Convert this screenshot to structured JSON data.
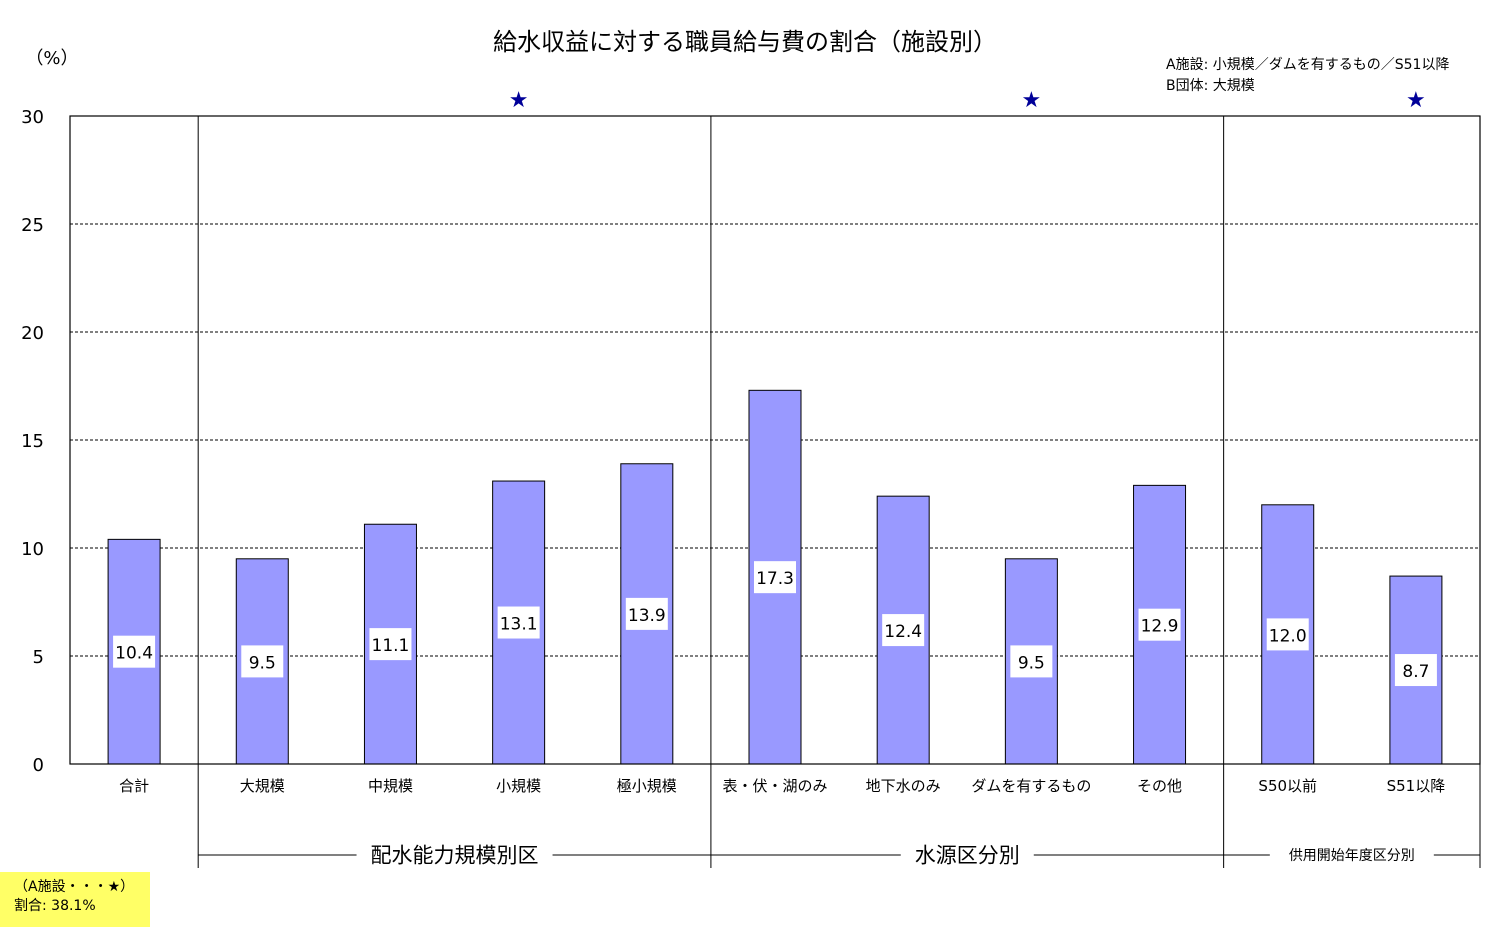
{
  "chart_data": {
    "type": "bar",
    "title": "給水収益に対する職員給与費の割合（施設別）",
    "ylabel": "（%）",
    "ylim": [
      0,
      30
    ],
    "yticks": [
      0,
      5,
      10,
      15,
      20,
      25,
      30
    ],
    "grid": true,
    "categories": [
      "合計",
      "大規模",
      "中規模",
      "小規模",
      "極小規模",
      "表・伏・湖のみ",
      "地下水のみ",
      "ダムを有するもの",
      "その他",
      "S50以前",
      "S51以降"
    ],
    "values": [
      10.4,
      9.5,
      11.1,
      13.1,
      13.9,
      17.3,
      12.4,
      9.5,
      12.9,
      12.0,
      8.7
    ],
    "value_labels": [
      "10.4",
      "9.5",
      "11.1",
      "13.1",
      "13.9",
      "17.3",
      "12.4",
      "9.5",
      "12.9",
      "12.0",
      "8.7"
    ],
    "bar_color": "#9999ff",
    "star_color": "#000099",
    "starred_categories": [
      "小規模",
      "ダムを有するもの",
      "S51以降"
    ],
    "groups": [
      {
        "label": "配水能力規模別区",
        "categories": [
          "大規模",
          "中規模",
          "小規模",
          "極小規模"
        ]
      },
      {
        "label": "水源区分別",
        "categories": [
          "表・伏・湖のみ",
          "地下水のみ",
          "ダムを有するもの",
          "その他"
        ]
      },
      {
        "label": "供用開始年度区分別",
        "categories": [
          "S50以前",
          "S51以降"
        ]
      }
    ]
  },
  "legend_note": {
    "line1": "A施設: 小規模／ダムを有するもの／S51以降",
    "line2": "B団体: 大規模"
  },
  "note_box": {
    "line1": "（A施設・・・★）",
    "line2": "割合: 38.1%",
    "background": "#ffff66"
  }
}
